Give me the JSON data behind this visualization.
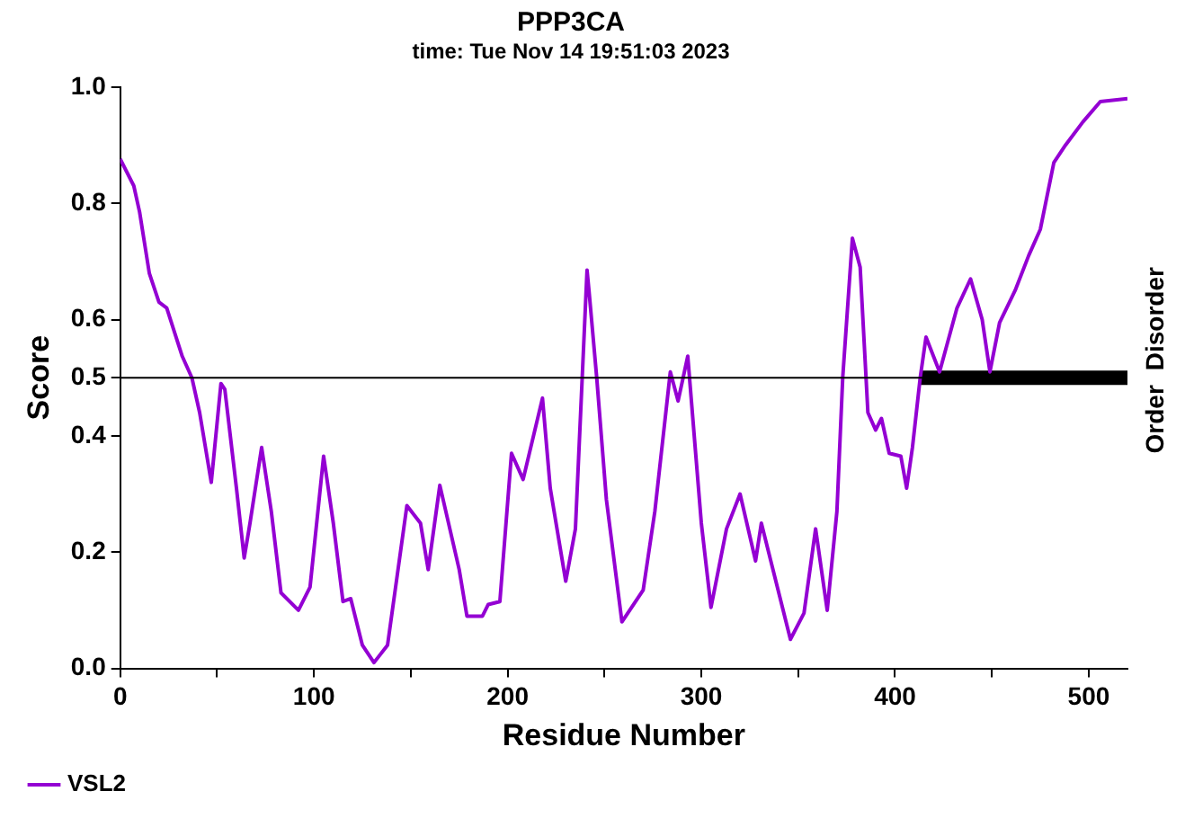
{
  "chart_data": {
    "type": "line",
    "title": "PPP3CA",
    "subtitle": "time: Tue Nov 14 19:51:03 2023",
    "xlabel": "Residue Number",
    "ylabel": "Score",
    "xlim": [
      0,
      520
    ],
    "ylim": [
      0,
      1
    ],
    "xticks": [
      0,
      {
        "value": 50,
        "label": null
      },
      100,
      {
        "value": 150,
        "label": null
      },
      200,
      {
        "value": 250,
        "label": null
      },
      300,
      {
        "value": 350,
        "label": null
      },
      400,
      {
        "value": 450,
        "label": null
      },
      500
    ],
    "yticks": [
      {
        "value": 0,
        "label": "0.0"
      },
      0.2,
      0.4,
      0.5,
      0.6,
      0.8,
      {
        "value": 1,
        "label": "1.0"
      }
    ],
    "series": [
      {
        "name": "VSL2",
        "color": "#9400d3",
        "x": [
          0,
          7,
          10,
          15,
          20,
          24,
          32,
          37,
          41,
          47,
          52,
          54,
          60,
          64,
          67,
          73,
          78,
          83,
          92,
          98,
          105,
          110,
          115,
          119,
          125,
          131,
          138,
          148,
          155,
          159,
          165,
          175,
          179,
          187,
          190,
          196,
          202,
          208,
          218,
          222,
          230,
          235,
          241,
          242,
          246,
          251,
          259,
          270,
          276,
          284,
          288,
          293,
          300,
          305,
          313,
          320,
          328,
          331,
          337,
          346,
          353,
          359,
          365,
          370,
          373,
          378,
          382,
          386,
          390,
          393,
          397,
          403,
          406,
          409,
          413,
          416,
          423,
          432,
          439,
          445,
          449,
          454,
          462,
          469,
          475,
          482,
          488,
          497,
          506,
          520
        ],
        "values": [
          0.876,
          0.83,
          0.785,
          0.68,
          0.63,
          0.62,
          0.537,
          0.5,
          0.44,
          0.32,
          0.49,
          0.48,
          0.31,
          0.19,
          0.25,
          0.38,
          0.27,
          0.13,
          0.1,
          0.14,
          0.365,
          0.25,
          0.115,
          0.12,
          0.04,
          0.01,
          0.04,
          0.28,
          0.25,
          0.17,
          0.315,
          0.17,
          0.09,
          0.09,
          0.11,
          0.115,
          0.37,
          0.325,
          0.465,
          0.31,
          0.15,
          0.24,
          0.685,
          0.65,
          0.5,
          0.29,
          0.08,
          0.135,
          0.27,
          0.51,
          0.46,
          0.537,
          0.25,
          0.105,
          0.24,
          0.3,
          0.185,
          0.25,
          0.17,
          0.05,
          0.095,
          0.24,
          0.1,
          0.27,
          0.5,
          0.74,
          0.69,
          0.44,
          0.41,
          0.43,
          0.37,
          0.365,
          0.31,
          0.38,
          0.5,
          0.57,
          0.51,
          0.62,
          0.67,
          0.6,
          0.51,
          0.595,
          0.65,
          0.71,
          0.755,
          0.87,
          0.9,
          0.94,
          0.975,
          0.98
        ]
      },
      {
        "type": "line",
        "color": "#000000",
        "x": [
          413,
          520
        ],
        "values": [
          0.5,
          0.5
        ]
      }
    ],
    "ref_lines": [
      {
        "axis": "y",
        "value": 0.5,
        "color": "#000000"
      }
    ],
    "annotations": [
      "Disorder",
      "Order"
    ],
    "legend": "bottom left",
    "grid": false,
    "marker": "none",
    "line_style": "solid"
  }
}
